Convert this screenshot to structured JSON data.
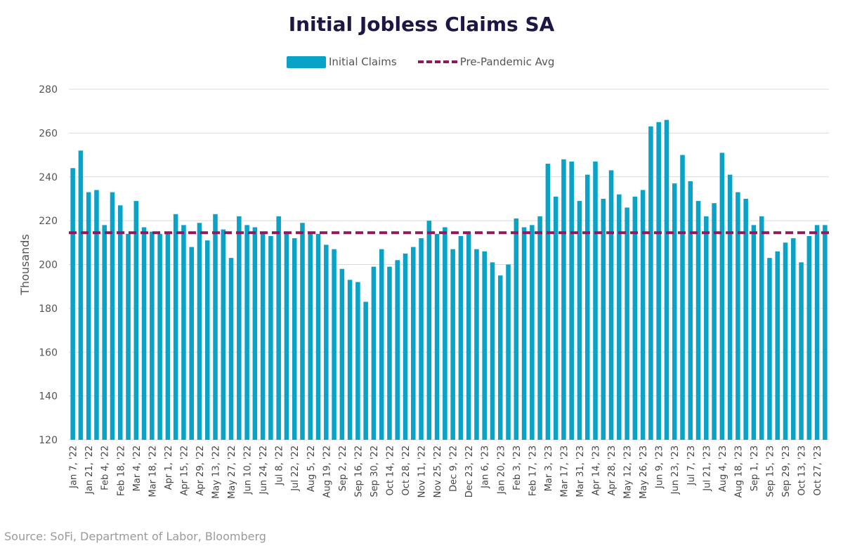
{
  "chart_data": {
    "type": "bar",
    "title": "Initial Jobless Claims SA",
    "ylabel": "Thousands",
    "xlabel": "",
    "ylim": [
      120,
      280
    ],
    "yticks": [
      120,
      140,
      160,
      180,
      200,
      220,
      240,
      260,
      280
    ],
    "grid": true,
    "legend_position": "top-center",
    "colors": {
      "bars": "#0aa3c7",
      "avg_line": "#8c1a5c",
      "grid": "#d9d9d9",
      "title": "#1f1646"
    },
    "series": [
      {
        "name": "Initial Claims",
        "values": [
          244,
          252,
          233,
          234,
          218,
          233,
          227,
          214,
          229,
          217,
          215,
          214,
          214,
          223,
          218,
          208,
          219,
          211,
          223,
          216,
          203,
          222,
          218,
          217,
          214,
          213,
          222,
          214,
          212,
          219,
          215,
          214,
          209,
          207,
          198,
          193,
          192,
          183,
          199,
          207,
          199,
          202,
          205,
          208,
          212,
          220,
          214,
          217,
          207,
          213,
          214,
          207,
          206,
          201,
          195,
          200,
          221,
          217,
          218,
          222,
          246,
          231,
          248,
          247,
          229,
          241,
          247,
          230,
          243,
          232,
          226,
          231,
          234,
          263,
          265,
          266,
          237,
          250,
          238,
          229,
          222,
          228,
          251,
          241,
          233,
          230,
          218,
          222,
          203,
          206,
          210,
          212,
          201,
          213,
          218,
          218
        ]
      },
      {
        "name": "Pre-Pandemic Avg",
        "value": 214.5,
        "style": "dashed"
      }
    ],
    "x_tick_labels": [
      "Jan 7, '22",
      "Jan 21, '22",
      "Feb 4, '22",
      "Feb 18, '22",
      "Mar 4, '22",
      "Mar 18, '22",
      "Apr 1, '22",
      "Apr 15, '22",
      "Apr 29, '22",
      "May 13, '22",
      "May 27, '22",
      "Jun 10, '22",
      "Jun 24, '22",
      "Jul 8, '22",
      "Jul 22, '22",
      "Aug 5, '22",
      "Aug 19, '22",
      "Sep 2, '22",
      "Sep 16, '22",
      "Sep 30, '22",
      "Oct 14, '22",
      "Oct 28, '22",
      "Nov 11, '22",
      "Nov 25, '22",
      "Dec 9, '22",
      "Dec 23, '22",
      "Jan 6, '23",
      "Jan 20, '23",
      "Feb 3, '23",
      "Feb 17, '23",
      "Mar 3, '23",
      "Mar 17, '23",
      "Mar 31, '23",
      "Apr 14, '23",
      "Apr 28, '23",
      "May 12, '23",
      "May 26, '23",
      "Jun 9, '23",
      "Jun 23, '23",
      "Jul 7, '23",
      "Jul 21, '23",
      "Aug 4, '23",
      "Aug 18, '23",
      "Sep 1, '23",
      "Sep 15, '23",
      "Sep 29, '23",
      "Oct 13, '23",
      "Oct 27, '23"
    ]
  },
  "source": "Source: SoFi, Department of Labor, Bloomberg"
}
